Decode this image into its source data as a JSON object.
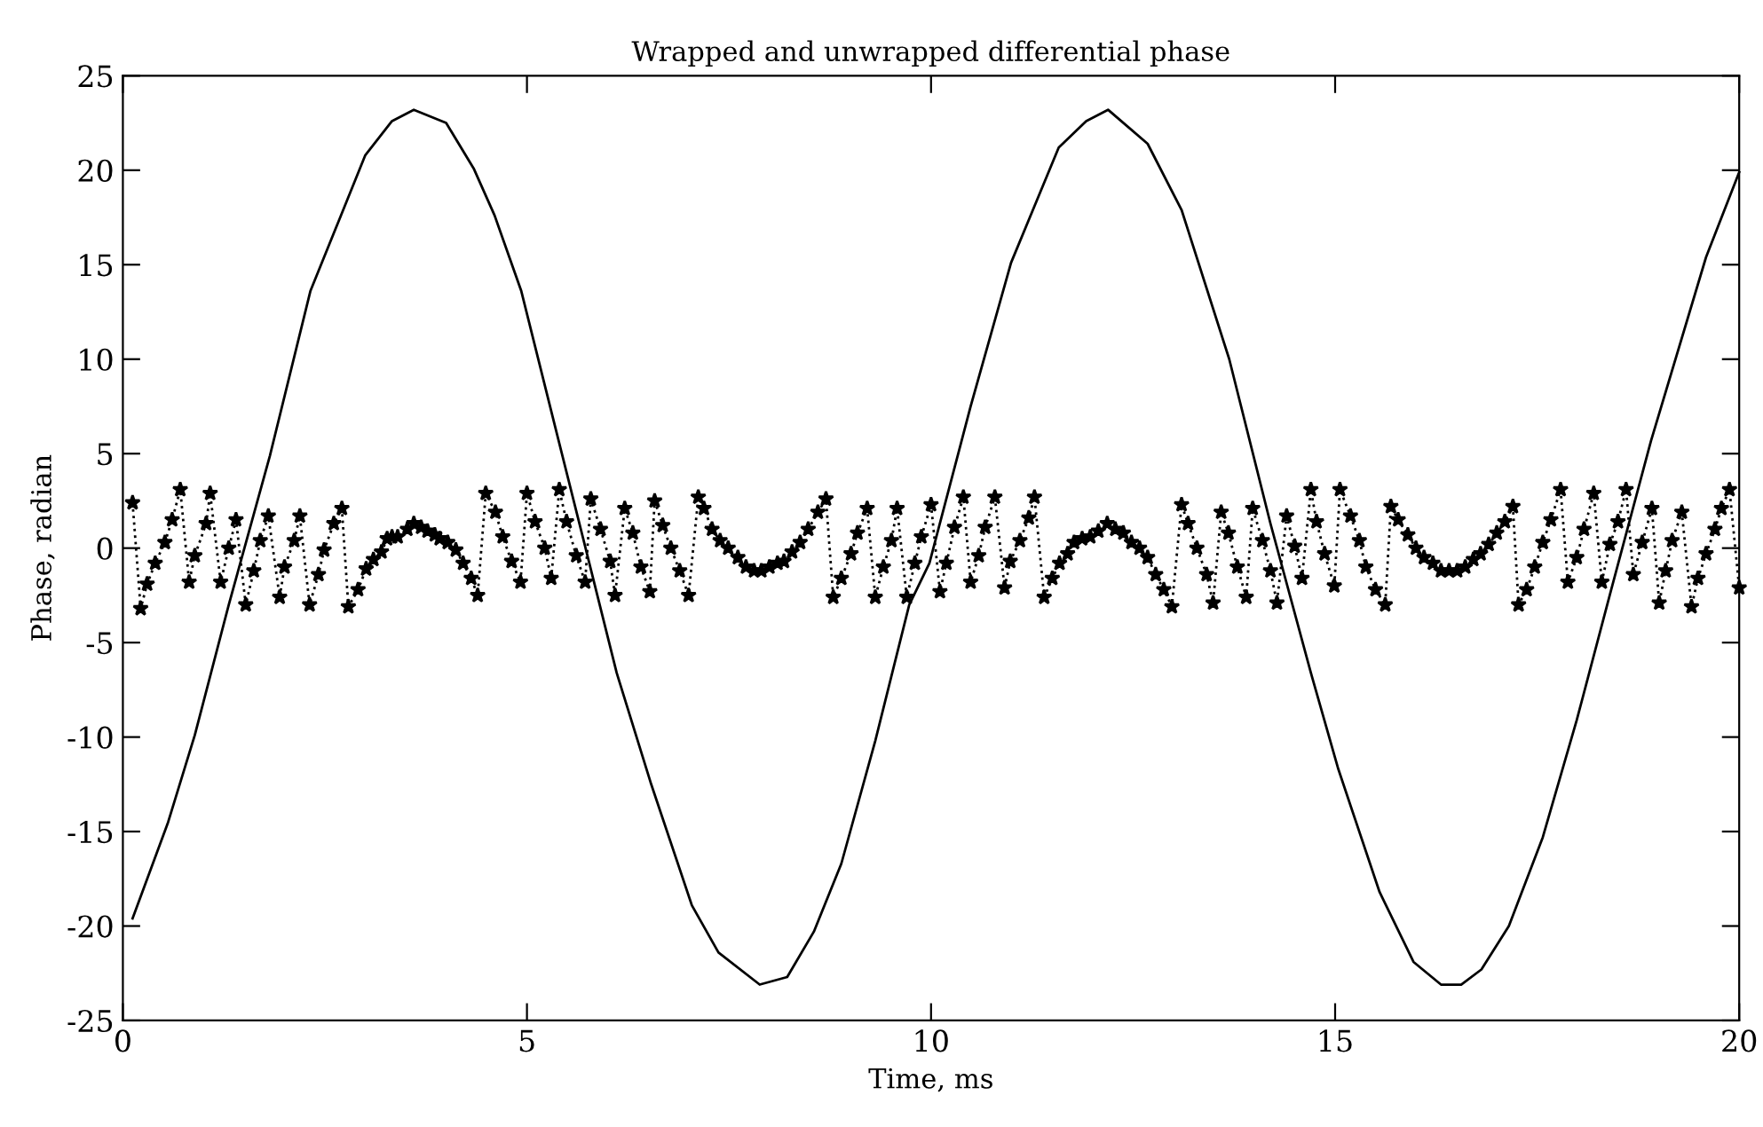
{
  "chart_data": {
    "type": "line",
    "title": "Wrapped and unwrapped differential phase",
    "xlabel": "Time, ms",
    "ylabel": "Phase, radian",
    "xlim": [
      0,
      20
    ],
    "xticks": [
      0,
      5,
      10,
      15,
      20
    ],
    "ylim": [
      -25,
      25
    ],
    "yticks": [
      -25,
      -20,
      -15,
      -10,
      -5,
      0,
      5,
      10,
      15,
      20,
      25
    ],
    "grid": false,
    "legend": false,
    "series": [
      {
        "color": "#000000",
        "marker": "none",
        "line_style": "solid",
        "x": [
          0.12,
          0.56,
          0.89,
          1.31,
          1.82,
          2.32,
          2.66,
          3.0,
          3.33,
          3.6,
          4.0,
          4.34,
          4.6,
          4.93,
          5.35,
          5.69,
          6.11,
          6.53,
          7.04,
          7.37,
          7.88,
          8.22,
          8.55,
          8.89,
          9.31,
          9.73,
          9.98,
          10.49,
          10.99,
          11.58,
          11.92,
          12.19,
          12.68,
          13.1,
          13.69,
          14.2,
          14.7,
          15.04,
          15.55,
          15.97,
          16.31,
          16.56,
          16.81,
          17.15,
          17.57,
          17.99,
          18.41,
          18.91,
          19.59,
          20.0
        ],
        "values": [
          -19.6,
          -14.5,
          -9.9,
          -3.0,
          4.9,
          13.6,
          17.2,
          20.8,
          22.6,
          23.2,
          22.5,
          20.1,
          17.6,
          13.6,
          6.4,
          0.6,
          -6.6,
          -12.4,
          -18.9,
          -21.4,
          -23.1,
          -22.7,
          -20.3,
          -16.7,
          -10.2,
          -3.0,
          -0.8,
          7.5,
          15.1,
          21.2,
          22.6,
          23.2,
          21.4,
          17.9,
          10.0,
          1.3,
          -6.6,
          -11.7,
          -18.2,
          -21.9,
          -23.1,
          -23.1,
          -22.3,
          -20.0,
          -15.3,
          -9.1,
          -2.3,
          5.7,
          15.4,
          19.9
        ]
      },
      {
        "color": "#000000",
        "marker": "star",
        "line_style": "dotted",
        "x": [
          0.12,
          0.22,
          0.3,
          0.4,
          0.52,
          0.61,
          0.71,
          0.82,
          0.89,
          1.03,
          1.08,
          1.21,
          1.31,
          1.4,
          1.52,
          1.62,
          1.7,
          1.8,
          1.94,
          2.0,
          2.12,
          2.19,
          2.31,
          2.42,
          2.49,
          2.61,
          2.71,
          2.79,
          2.91,
          3.01,
          3.1,
          3.2,
          3.27,
          3.33,
          3.4,
          3.52,
          3.6,
          3.69,
          3.77,
          3.86,
          3.92,
          4.02,
          4.12,
          4.21,
          4.31,
          4.39,
          4.49,
          4.61,
          4.7,
          4.81,
          4.92,
          5.0,
          5.1,
          5.22,
          5.3,
          5.4,
          5.49,
          5.61,
          5.72,
          5.79,
          5.91,
          6.03,
          6.09,
          6.21,
          6.31,
          6.41,
          6.52,
          6.58,
          6.68,
          6.78,
          6.89,
          7.0,
          7.12,
          7.19,
          7.29,
          7.39,
          7.49,
          7.61,
          7.71,
          7.81,
          7.9,
          8.0,
          8.1,
          8.18,
          8.28,
          8.38,
          8.48,
          8.6,
          8.7,
          8.79,
          8.89,
          9.01,
          9.09,
          9.21,
          9.31,
          9.41,
          9.51,
          9.58,
          9.7,
          9.8,
          9.88,
          10.0,
          10.11,
          10.19,
          10.29,
          10.4,
          10.49,
          10.59,
          10.67,
          10.79,
          10.91,
          10.98,
          11.1,
          11.21,
          11.28,
          11.4,
          11.5,
          11.59,
          11.69,
          11.77,
          11.87,
          11.97,
          12.07,
          12.18,
          12.28,
          12.38,
          12.48,
          12.58,
          12.68,
          12.78,
          12.88,
          12.98,
          13.1,
          13.18,
          13.29,
          13.41,
          13.49,
          13.59,
          13.68,
          13.79,
          13.9,
          13.98,
          14.1,
          14.2,
          14.28,
          14.4,
          14.5,
          14.59,
          14.7,
          14.77,
          14.87,
          14.99,
          15.06,
          15.19,
          15.3,
          15.38,
          15.5,
          15.62,
          15.69,
          15.78,
          15.9,
          16.0,
          16.1,
          16.21,
          16.31,
          16.41,
          16.51,
          16.61,
          16.71,
          16.8,
          16.9,
          17.0,
          17.1,
          17.2,
          17.27,
          17.37,
          17.47,
          17.57,
          17.67,
          17.79,
          17.88,
          17.99,
          18.08,
          18.2,
          18.3,
          18.4,
          18.5,
          18.6,
          18.69,
          18.8,
          18.92,
          19.01,
          19.09,
          19.17,
          19.29,
          19.41,
          19.49,
          19.59,
          19.7,
          19.78,
          19.88,
          20.0
        ],
        "values": [
          2.4,
          -3.2,
          -1.9,
          -0.8,
          0.3,
          1.5,
          3.1,
          -1.8,
          -0.4,
          1.3,
          2.9,
          -1.8,
          0.0,
          1.5,
          -3.0,
          -1.2,
          0.4,
          1.7,
          -2.6,
          -1.0,
          0.4,
          1.7,
          -3.0,
          -1.4,
          -0.1,
          1.3,
          2.1,
          -3.1,
          -2.2,
          -1.1,
          -0.6,
          -0.2,
          0.5,
          0.6,
          0.6,
          1.0,
          1.3,
          1.1,
          0.9,
          0.7,
          0.5,
          0.3,
          -0.1,
          -0.8,
          -1.6,
          -2.5,
          2.9,
          1.9,
          0.6,
          -0.7,
          -1.8,
          2.9,
          1.4,
          0.0,
          -1.6,
          3.1,
          1.4,
          -0.4,
          -1.8,
          2.6,
          1.0,
          -0.7,
          -2.5,
          2.1,
          0.8,
          -1.0,
          -2.3,
          2.5,
          1.2,
          0.0,
          -1.2,
          -2.5,
          2.7,
          2.1,
          1.0,
          0.4,
          0.0,
          -0.5,
          -1.0,
          -1.2,
          -1.2,
          -1.0,
          -0.8,
          -0.7,
          -0.2,
          0.3,
          1.0,
          1.9,
          2.6,
          -2.6,
          -1.6,
          -0.3,
          0.8,
          2.1,
          -2.6,
          -1.0,
          0.4,
          2.1,
          -2.6,
          -0.8,
          0.6,
          2.3,
          -2.3,
          -0.8,
          1.1,
          2.7,
          -1.8,
          -0.4,
          1.1,
          2.7,
          -2.1,
          -0.7,
          0.4,
          1.6,
          2.7,
          -2.6,
          -1.6,
          -0.8,
          -0.3,
          0.3,
          0.5,
          0.6,
          0.9,
          1.3,
          1.0,
          0.8,
          0.3,
          0.0,
          -0.5,
          -1.4,
          -2.2,
          -3.1,
          2.3,
          1.3,
          0.0,
          -1.4,
          -2.9,
          1.9,
          0.8,
          -1.0,
          -2.6,
          2.1,
          0.4,
          -1.2,
          -2.9,
          1.7,
          0.1,
          -1.6,
          3.1,
          1.4,
          -0.3,
          -2.0,
          3.1,
          1.7,
          0.4,
          -1.0,
          -2.2,
          -3.0,
          2.2,
          1.5,
          0.7,
          0.0,
          -0.5,
          -0.8,
          -1.2,
          -1.2,
          -1.2,
          -1.0,
          -0.6,
          -0.3,
          0.2,
          0.8,
          1.4,
          2.2,
          -3.0,
          -2.2,
          -1.0,
          0.3,
          1.5,
          3.1,
          -1.8,
          -0.5,
          1.0,
          2.9,
          -1.8,
          0.2,
          1.4,
          3.1,
          -1.4,
          0.3,
          2.1,
          -2.9,
          -1.2,
          0.4,
          1.9,
          -3.1,
          -1.6,
          -0.3,
          1.0,
          2.1,
          3.1,
          -2.1
        ]
      }
    ]
  }
}
